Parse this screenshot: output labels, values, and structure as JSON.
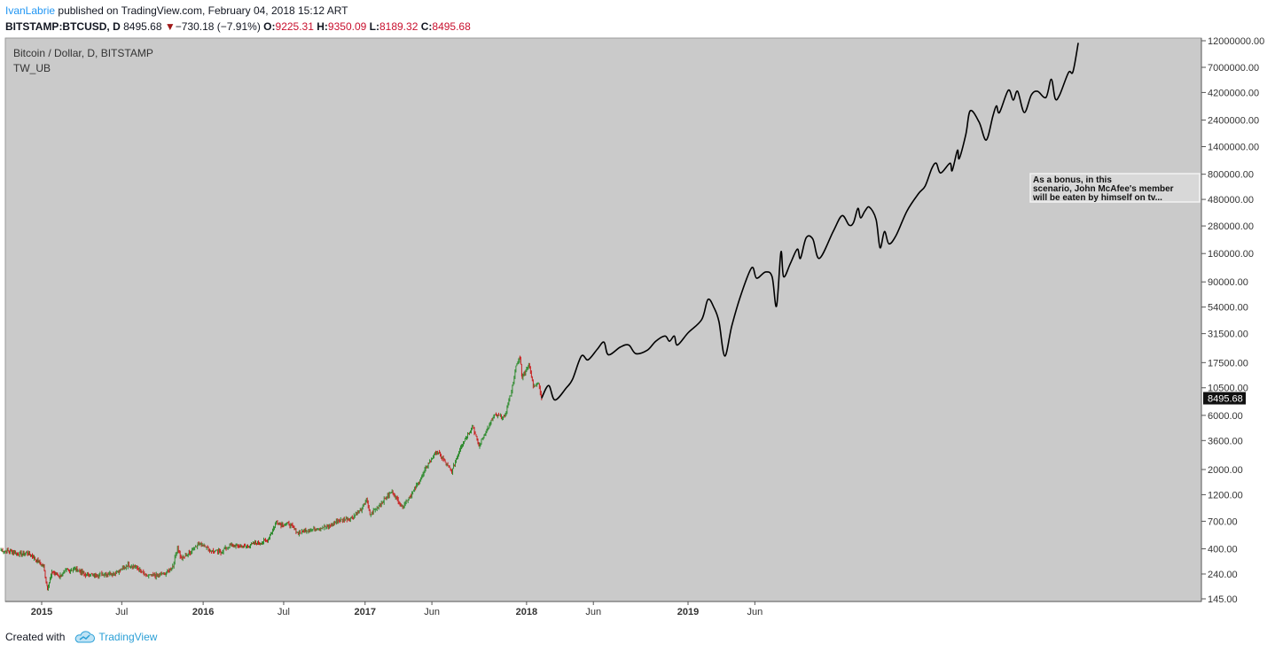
{
  "header": {
    "author": "IvanLabrie",
    "published": "published on TradingView.com, February 04, 2018 15:12 ART",
    "symbol": "BITSTAMP:BTCUSD, D",
    "last": "8495.68",
    "change": "−730.18 (−7.91%)",
    "open_label": "O:",
    "open": "9225.31",
    "high_label": "H:",
    "high": "9350.09",
    "low_label": "L:",
    "low": "8189.32",
    "close_label": "C:",
    "close": "8495.68"
  },
  "chart_data": {
    "type": "line",
    "title": "Bitcoin / Dollar, D, BITSTAMP",
    "subtitle": "TW_UB",
    "y_scale": "log",
    "ylim": [
      145,
      12000000
    ],
    "y_ticks": [
      145,
      240,
      400,
      700,
      1200,
      2000,
      3600,
      6000,
      10500,
      17500,
      31500,
      54000,
      90000,
      160000,
      280000,
      480000,
      800000,
      1400000,
      2400000,
      4200000,
      7000000,
      12000000
    ],
    "y_tick_labels": [
      "145.00",
      "240.00",
      "400.00",
      "700.00",
      "1200.00",
      "2000.00",
      "3600.00",
      "6000.00",
      "10500.00",
      "17500.00",
      "31500.00",
      "54000.00",
      "90000.00",
      "160000.00",
      "280000.00",
      "480000.00",
      "800000.00",
      "1400000.00",
      "2400000.00",
      "4200000.00",
      "7000000.00",
      "12000000.00"
    ],
    "x_ticks": [
      {
        "date": "2015-01-01",
        "label": "2015",
        "bold": true
      },
      {
        "date": "2015-07-01",
        "label": "Jul",
        "bold": false
      },
      {
        "date": "2016-01-01",
        "label": "2016",
        "bold": true
      },
      {
        "date": "2016-07-01",
        "label": "Jul",
        "bold": false
      },
      {
        "date": "2017-01-01",
        "label": "2017",
        "bold": true
      },
      {
        "date": "2017-06-01",
        "label": "Jun",
        "bold": false
      },
      {
        "date": "2018-01-01",
        "label": "2018",
        "bold": true
      },
      {
        "date": "2018-06-01",
        "label": "Jun",
        "bold": false
      },
      {
        "date": "2019-01-01",
        "label": "2019",
        "bold": true
      },
      {
        "date": "2019-06-01",
        "label": "Jun",
        "bold": false
      }
    ],
    "last_price_label": "8495.68",
    "annotation": "As a bonus, in this scenario, John McAfee's member will be eaten by himself on tv...",
    "colors": {
      "background": "#cacaca",
      "up": "#2e8b2e",
      "down": "#c81e1e",
      "projection": "#000000"
    },
    "series": [
      {
        "kind": "candles",
        "points": [
          [
            "2014-10-01",
            390
          ],
          [
            "2014-10-20",
            380
          ],
          [
            "2014-11-10",
            360
          ],
          [
            "2014-12-01",
            370
          ],
          [
            "2014-12-20",
            320
          ],
          [
            "2015-01-05",
            280
          ],
          [
            "2015-01-14",
            180
          ],
          [
            "2015-01-25",
            250
          ],
          [
            "2015-02-10",
            230
          ],
          [
            "2015-03-01",
            260
          ],
          [
            "2015-03-20",
            265
          ],
          [
            "2015-04-10",
            235
          ],
          [
            "2015-05-01",
            236
          ],
          [
            "2015-05-25",
            240
          ],
          [
            "2015-06-15",
            245
          ],
          [
            "2015-07-05",
            270
          ],
          [
            "2015-07-15",
            290
          ],
          [
            "2015-08-01",
            280
          ],
          [
            "2015-08-25",
            230
          ],
          [
            "2015-09-15",
            232
          ],
          [
            "2015-10-10",
            245
          ],
          [
            "2015-10-25",
            285
          ],
          [
            "2015-11-04",
            420
          ],
          [
            "2015-11-12",
            325
          ],
          [
            "2015-12-01",
            370
          ],
          [
            "2015-12-20",
            440
          ],
          [
            "2016-01-05",
            430
          ],
          [
            "2016-01-16",
            385
          ],
          [
            "2016-02-10",
            375
          ],
          [
            "2016-03-01",
            430
          ],
          [
            "2016-04-01",
            418
          ],
          [
            "2016-05-01",
            450
          ],
          [
            "2016-05-25",
            470
          ],
          [
            "2016-06-15",
            700
          ],
          [
            "2016-06-25",
            660
          ],
          [
            "2016-07-15",
            660
          ],
          [
            "2016-08-03",
            550
          ],
          [
            "2016-08-20",
            580
          ],
          [
            "2016-09-15",
            610
          ],
          [
            "2016-10-10",
            630
          ],
          [
            "2016-11-01",
            710
          ],
          [
            "2016-12-01",
            750
          ],
          [
            "2016-12-25",
            900
          ],
          [
            "2017-01-04",
            1100
          ],
          [
            "2017-01-12",
            800
          ],
          [
            "2017-02-01",
            960
          ],
          [
            "2017-03-03",
            1280
          ],
          [
            "2017-03-25",
            940
          ],
          [
            "2017-04-15",
            1190
          ],
          [
            "2017-05-10",
            1750
          ],
          [
            "2017-05-25",
            2300
          ],
          [
            "2017-06-12",
            2900
          ],
          [
            "2017-06-25",
            2500
          ],
          [
            "2017-07-16",
            1900
          ],
          [
            "2017-08-05",
            3200
          ],
          [
            "2017-08-25",
            4300
          ],
          [
            "2017-09-01",
            4900
          ],
          [
            "2017-09-15",
            3200
          ],
          [
            "2017-10-01",
            4300
          ],
          [
            "2017-10-20",
            6000
          ],
          [
            "2017-11-12",
            5800
          ],
          [
            "2017-11-28",
            9900
          ],
          [
            "2017-12-08",
            16000
          ],
          [
            "2017-12-17",
            19500
          ],
          [
            "2017-12-22",
            13000
          ],
          [
            "2018-01-06",
            17000
          ],
          [
            "2018-01-16",
            11000
          ],
          [
            "2018-01-28",
            11700
          ],
          [
            "2018-02-04",
            8495.68
          ]
        ]
      },
      {
        "kind": "projection",
        "points": [
          [
            "2018-02-04",
            8495.68
          ],
          [
            "2018-02-20",
            11000
          ],
          [
            "2018-03-06",
            8200
          ],
          [
            "2018-04-01",
            10500
          ],
          [
            "2018-04-15",
            12500
          ],
          [
            "2018-05-05",
            20000
          ],
          [
            "2018-05-20",
            18500
          ],
          [
            "2018-06-10",
            23000
          ],
          [
            "2018-06-25",
            26500
          ],
          [
            "2018-07-05",
            20500
          ],
          [
            "2018-08-01",
            24000
          ],
          [
            "2018-08-20",
            25000
          ],
          [
            "2018-09-05",
            21000
          ],
          [
            "2018-10-01",
            22500
          ],
          [
            "2018-10-20",
            27000
          ],
          [
            "2018-11-10",
            30000
          ],
          [
            "2018-11-20",
            27000
          ],
          [
            "2018-12-01",
            30000
          ],
          [
            "2018-12-08",
            25000
          ],
          [
            "2019-01-01",
            32000
          ],
          [
            "2019-02-01",
            42000
          ],
          [
            "2019-02-15",
            63000
          ],
          [
            "2019-03-01",
            53000
          ],
          [
            "2019-03-12",
            40000
          ],
          [
            "2019-03-25",
            20000
          ],
          [
            "2019-04-10",
            37000
          ],
          [
            "2019-05-01",
            70000
          ],
          [
            "2019-05-25",
            120000
          ],
          [
            "2019-06-05",
            97000
          ],
          [
            "2019-06-25",
            110000
          ],
          [
            "2019-07-10",
            100000
          ],
          [
            "2019-07-20",
            55000
          ],
          [
            "2019-07-30",
            165000
          ],
          [
            "2019-08-05",
            100000
          ],
          [
            "2019-08-20",
            130000
          ],
          [
            "2019-09-05",
            175000
          ],
          [
            "2019-09-12",
            145000
          ],
          [
            "2019-09-25",
            220000
          ],
          [
            "2019-10-10",
            215000
          ],
          [
            "2019-10-25",
            145000
          ],
          [
            "2019-11-25",
            250000
          ],
          [
            "2019-12-15",
            345000
          ],
          [
            "2019-12-31",
            285000
          ],
          [
            "2020-01-10",
            300000
          ],
          [
            "2020-01-20",
            400000
          ],
          [
            "2020-01-26",
            330000
          ],
          [
            "2020-02-05",
            380000
          ],
          [
            "2020-02-15",
            410000
          ],
          [
            "2020-03-01",
            320000
          ],
          [
            "2020-03-10",
            180000
          ],
          [
            "2020-03-20",
            250000
          ],
          [
            "2020-03-30",
            195000
          ],
          [
            "2020-04-15",
            230000
          ],
          [
            "2020-05-10",
            380000
          ],
          [
            "2020-06-05",
            540000
          ],
          [
            "2020-06-20",
            630000
          ],
          [
            "2020-07-05",
            900000
          ],
          [
            "2020-07-15",
            1000000
          ],
          [
            "2020-07-25",
            820000
          ],
          [
            "2020-08-15",
            1000000
          ],
          [
            "2020-08-20",
            860000
          ],
          [
            "2020-09-01",
            1300000
          ],
          [
            "2020-09-05",
            1100000
          ],
          [
            "2020-09-20",
            1800000
          ],
          [
            "2020-09-30",
            2900000
          ],
          [
            "2020-10-20",
            2300000
          ],
          [
            "2020-11-05",
            1600000
          ],
          [
            "2020-11-20",
            2600000
          ],
          [
            "2020-11-28",
            3200000
          ],
          [
            "2020-12-05",
            2800000
          ],
          [
            "2020-12-25",
            4400000
          ],
          [
            "2021-01-05",
            3600000
          ],
          [
            "2021-01-15",
            4300000
          ],
          [
            "2021-01-30",
            2800000
          ],
          [
            "2021-02-15",
            4000000
          ],
          [
            "2021-03-01",
            4300000
          ],
          [
            "2021-03-20",
            3800000
          ],
          [
            "2021-04-01",
            5500000
          ],
          [
            "2021-04-10",
            3700000
          ],
          [
            "2021-04-20",
            4000000
          ],
          [
            "2021-05-10",
            6300000
          ],
          [
            "2021-05-20",
            6400000
          ],
          [
            "2021-06-01",
            11500000
          ]
        ]
      }
    ]
  },
  "footer": {
    "created_with": "Created with",
    "brand": "TradingView"
  }
}
